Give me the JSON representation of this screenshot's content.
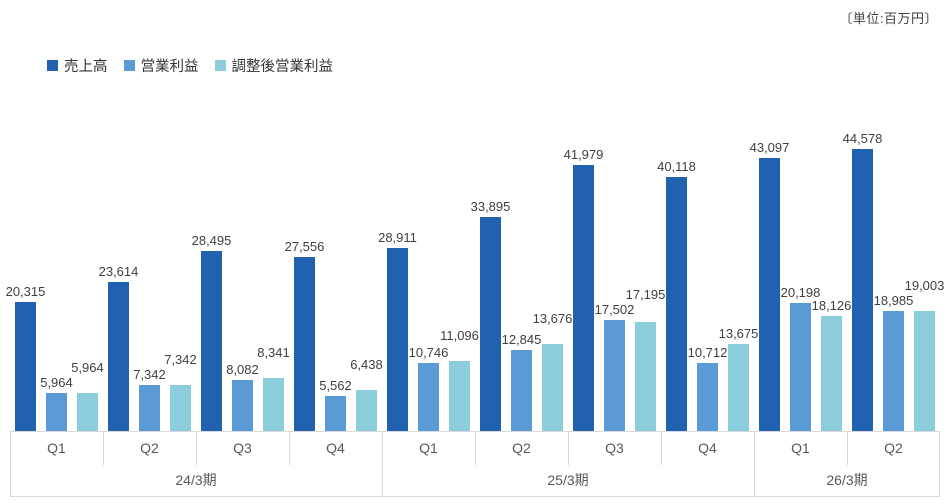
{
  "chart_data": {
    "type": "bar",
    "title": "",
    "unit_label": "〔単位:百万円〕",
    "legend_position": "top-left",
    "grid": false,
    "ylim": [
      0,
      46000
    ],
    "categories": [
      "Q1",
      "Q2",
      "Q3",
      "Q4",
      "Q1",
      "Q2",
      "Q3",
      "Q4",
      "Q1",
      "Q2"
    ],
    "category_groups": [
      {
        "label": "24/3期",
        "span": 4
      },
      {
        "label": "25/3期",
        "span": 4
      },
      {
        "label": "26/3期",
        "span": 2
      }
    ],
    "series": [
      {
        "name": "売上高",
        "color": "#2062B0",
        "values": [
          20315,
          23614,
          28495,
          27556,
          28911,
          33895,
          41979,
          40118,
          43097,
          44578
        ]
      },
      {
        "name": "営業利益",
        "color": "#5A9BD5",
        "values": [
          5964,
          7342,
          8082,
          5562,
          10746,
          12845,
          17502,
          10712,
          20198,
          18985
        ]
      },
      {
        "name": "調整後営業利益",
        "color": "#8BCDDB",
        "values": [
          5964,
          7342,
          8341,
          6438,
          11096,
          13676,
          17195,
          13675,
          18126,
          19003
        ]
      }
    ],
    "value_label_color": "#404040",
    "axis_text_color": "#595959",
    "axis_line_color": "#D9D9D9"
  }
}
